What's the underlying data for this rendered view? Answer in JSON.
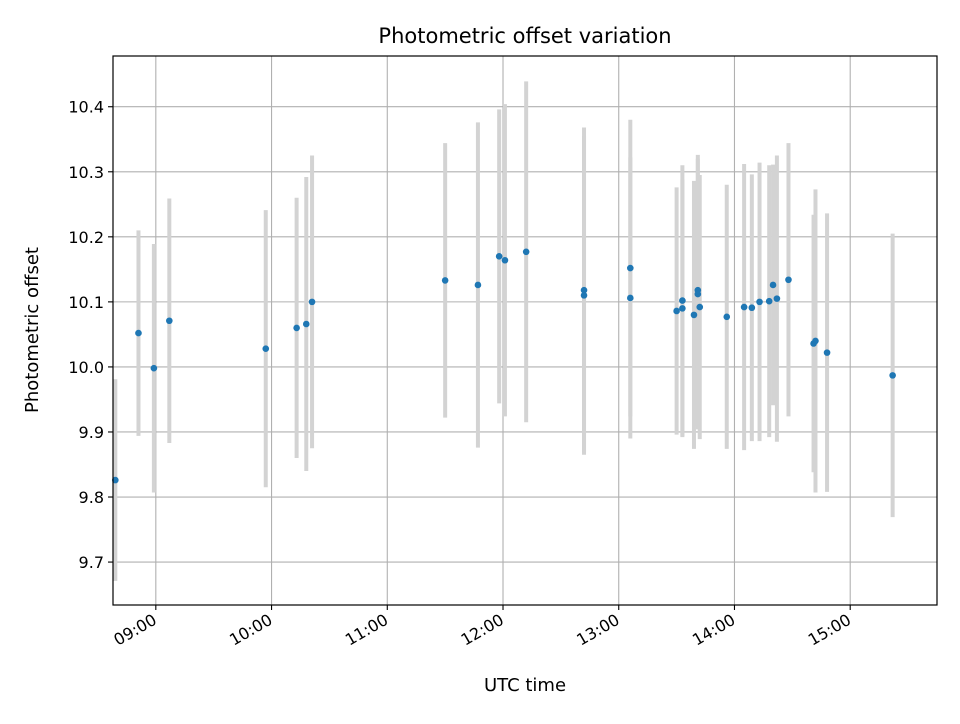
{
  "chart_data": {
    "type": "scatter",
    "title": "Photometric offset variation",
    "xlabel": "UTC time",
    "ylabel": "Photometric offset",
    "x_ticks": [
      "09:00",
      "10:00",
      "11:00",
      "12:00",
      "13:00",
      "14:00",
      "15:00"
    ],
    "y_ticks": [
      "9.7",
      "9.8",
      "9.9",
      "10.0",
      "10.1",
      "10.2",
      "10.3",
      "10.4"
    ],
    "x_tick_hours": [
      9,
      10,
      11,
      12,
      13,
      14,
      15
    ],
    "y_tick_values": [
      9.7,
      9.8,
      9.9,
      10.0,
      10.1,
      10.2,
      10.3,
      10.4
    ],
    "xlim_hours": [
      8.63,
      15.75
    ],
    "ylim": [
      9.634,
      10.478
    ],
    "grid": true,
    "series": [
      {
        "marker_color": "#1f77b4",
        "errorbar_color": "#d3d3d3",
        "points": [
          {
            "t": "08:39",
            "y": 9.826,
            "err": 0.155
          },
          {
            "t": "08:51",
            "y": 10.052,
            "err": 0.158
          },
          {
            "t": "08:59",
            "y": 9.998,
            "err": 0.191
          },
          {
            "t": "09:07",
            "y": 10.071,
            "err": 0.188
          },
          {
            "t": "09:57",
            "y": 10.028,
            "err": 0.213
          },
          {
            "t": "10:13",
            "y": 10.06,
            "err": 0.2
          },
          {
            "t": "10:18",
            "y": 10.066,
            "err": 0.226
          },
          {
            "t": "10:21",
            "y": 10.1,
            "err": 0.225
          },
          {
            "t": "11:30",
            "y": 10.133,
            "err": 0.211
          },
          {
            "t": "11:47",
            "y": 10.126,
            "err": 0.25
          },
          {
            "t": "11:58",
            "y": 10.17,
            "err": 0.226
          },
          {
            "t": "12:01",
            "y": 10.164,
            "err": 0.24
          },
          {
            "t": "12:12",
            "y": 10.177,
            "err": 0.262
          },
          {
            "t": "12:42",
            "y": 10.118,
            "err": 0.25
          },
          {
            "t": "12:42",
            "y": 10.11,
            "err": 0.245
          },
          {
            "t": "13:06",
            "y": 10.152,
            "err": 0.228
          },
          {
            "t": "13:06",
            "y": 10.106,
            "err": 0.216
          },
          {
            "t": "13:30",
            "y": 10.086,
            "err": 0.19
          },
          {
            "t": "13:33",
            "y": 10.102,
            "err": 0.208
          },
          {
            "t": "13:33",
            "y": 10.09,
            "err": 0.198
          },
          {
            "t": "13:39",
            "y": 10.08,
            "err": 0.206
          },
          {
            "t": "13:41",
            "y": 10.118,
            "err": 0.208
          },
          {
            "t": "13:41",
            "y": 10.112,
            "err": 0.208
          },
          {
            "t": "13:42",
            "y": 10.092,
            "err": 0.203
          },
          {
            "t": "13:56",
            "y": 10.077,
            "err": 0.203
          },
          {
            "t": "14:05",
            "y": 10.092,
            "err": 0.22
          },
          {
            "t": "14:09",
            "y": 10.091,
            "err": 0.205
          },
          {
            "t": "14:13",
            "y": 10.1,
            "err": 0.214
          },
          {
            "t": "14:18",
            "y": 10.101,
            "err": 0.209
          },
          {
            "t": "14:20",
            "y": 10.126,
            "err": 0.185
          },
          {
            "t": "14:22",
            "y": 10.105,
            "err": 0.22
          },
          {
            "t": "14:28",
            "y": 10.134,
            "err": 0.21
          },
          {
            "t": "14:41",
            "y": 10.036,
            "err": 0.198
          },
          {
            "t": "14:42",
            "y": 10.04,
            "err": 0.233
          },
          {
            "t": "14:48",
            "y": 10.022,
            "err": 0.214
          },
          {
            "t": "15:22",
            "y": 9.987,
            "err": 0.218
          }
        ]
      }
    ]
  }
}
